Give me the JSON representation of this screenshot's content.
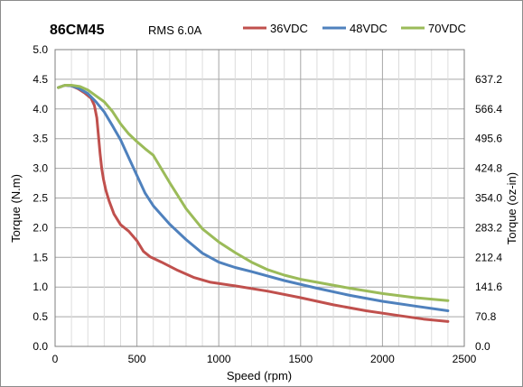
{
  "chart_data": {
    "type": "line",
    "title": "86CM45",
    "subtitle": "RMS 6.0A",
    "xlabel": "Speed (rpm)",
    "ylabel": "Torque (N.m)",
    "y2label": "Torque (oz-in)",
    "xlim": [
      0,
      2500
    ],
    "ylim": [
      0,
      5
    ],
    "y2lim": [
      0,
      708
    ],
    "grid": true,
    "legend": "top-right",
    "xticks": [
      "0",
      "500",
      "1000",
      "1500",
      "2000",
      "2500"
    ],
    "yticks": [
      "0.0",
      "0.5",
      "1.0",
      "1.5",
      "2.0",
      "2.5",
      "3.0",
      "3.5",
      "4.0",
      "4.5",
      "5.0"
    ],
    "y2ticks": [
      "0.0",
      "70.8",
      "141.6",
      "212.4",
      "283.2",
      "354.0",
      "424.8",
      "495.6",
      "566.4",
      "637.2"
    ],
    "series": [
      {
        "name": "36VDC",
        "color": "#c0504d",
        "x": [
          20,
          60,
          100,
          140,
          180,
          220,
          240,
          255,
          265,
          275,
          285,
          295,
          310,
          330,
          360,
          400,
          450,
          500,
          540,
          580,
          650,
          750,
          850,
          950,
          1100,
          1300,
          1500,
          1700,
          1900,
          2100,
          2250,
          2400
        ],
        "y": [
          4.36,
          4.4,
          4.39,
          4.34,
          4.27,
          4.18,
          4.06,
          3.85,
          3.55,
          3.25,
          3.0,
          2.82,
          2.63,
          2.45,
          2.23,
          2.05,
          1.94,
          1.78,
          1.6,
          1.51,
          1.42,
          1.28,
          1.16,
          1.08,
          1.02,
          0.93,
          0.82,
          0.7,
          0.6,
          0.52,
          0.46,
          0.42
        ]
      },
      {
        "name": "48VDC",
        "color": "#4f81bd",
        "x": [
          20,
          60,
          100,
          150,
          200,
          250,
          300,
          350,
          400,
          450,
          500,
          550,
          600,
          700,
          800,
          900,
          1000,
          1100,
          1200,
          1400,
          1600,
          1800,
          2000,
          2200,
          2400
        ],
        "y": [
          4.36,
          4.4,
          4.39,
          4.34,
          4.26,
          4.12,
          3.95,
          3.72,
          3.48,
          3.18,
          2.88,
          2.58,
          2.37,
          2.06,
          1.8,
          1.57,
          1.42,
          1.33,
          1.26,
          1.11,
          0.98,
          0.86,
          0.76,
          0.68,
          0.6
        ]
      },
      {
        "name": "70VDC",
        "color": "#9bbb59",
        "x": [
          20,
          60,
          100,
          150,
          200,
          250,
          300,
          350,
          400,
          450,
          500,
          550,
          600,
          700,
          800,
          900,
          1000,
          1100,
          1200,
          1300,
          1400,
          1500,
          1600,
          1800,
          2000,
          2200,
          2400
        ],
        "y": [
          4.36,
          4.4,
          4.4,
          4.38,
          4.32,
          4.22,
          4.12,
          3.96,
          3.75,
          3.58,
          3.45,
          3.33,
          3.22,
          2.76,
          2.32,
          1.98,
          1.76,
          1.58,
          1.42,
          1.29,
          1.2,
          1.13,
          1.08,
          0.98,
          0.89,
          0.82,
          0.77
        ]
      }
    ]
  }
}
